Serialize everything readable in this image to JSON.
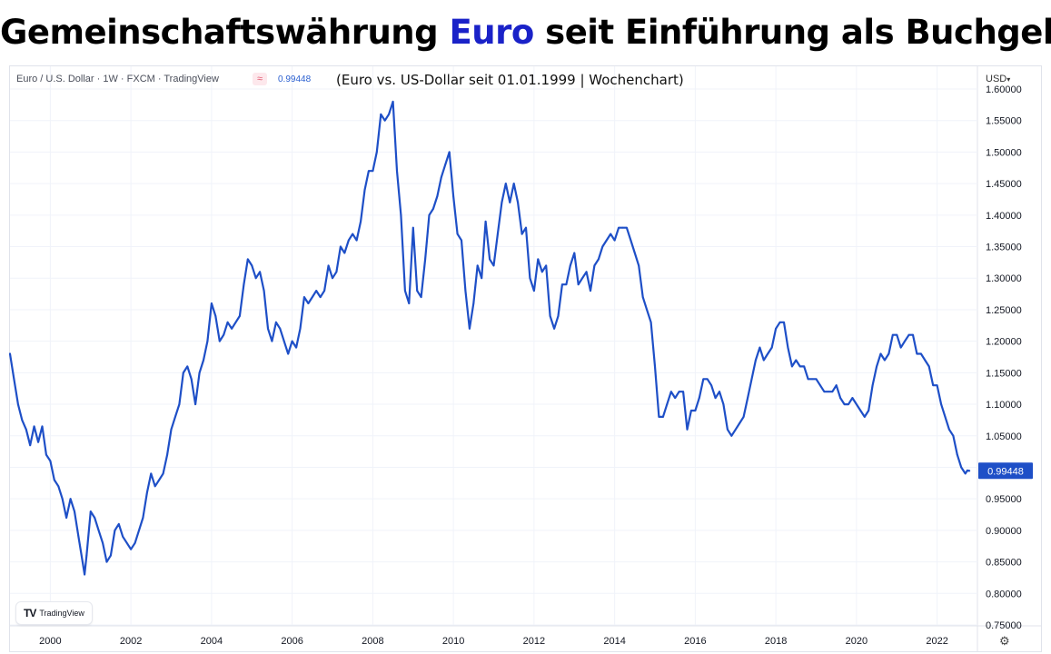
{
  "header": {
    "title_pre": "Gemeinschaftswährung ",
    "title_accent": "Euro",
    "title_post": " seit Einführung als Buchgeld"
  },
  "toolbar": {
    "symbol": "Euro / U.S. Dollar · 1W · FXCM · TradingView",
    "badge": "≈",
    "last_price": "0.99448",
    "subtitle": "(Euro vs. US-Dollar seit 01.01.1999 | Wochenchart)",
    "currency": "USD",
    "logo_mark": "TV",
    "logo_name": "TradingView",
    "settings_icon": "⚙"
  },
  "colors": {
    "line": "#1e4fc7",
    "accent": "#1a22c8",
    "price_tag": "#1e4fc7",
    "grid": "#f0f3fa"
  },
  "chart_data": {
    "type": "line",
    "title": "Gemeinschaftswährung Euro seit Einführung als Buchgeld",
    "subtitle": "(Euro vs. US-Dollar seit 01.01.1999 | Wochenchart)",
    "xlabel": "",
    "ylabel": "",
    "xlim": [
      1999.0,
      2023.0
    ],
    "ylim": [
      0.75,
      1.6
    ],
    "x_ticks": [
      2000,
      2002,
      2004,
      2006,
      2008,
      2010,
      2012,
      2014,
      2016,
      2018,
      2020,
      2022
    ],
    "y_ticks": [
      "0.75000",
      "0.80000",
      "0.85000",
      "0.90000",
      "0.95000",
      "1.00000",
      "1.05000",
      "1.10000",
      "1.15000",
      "1.20000",
      "1.25000",
      "1.30000",
      "1.35000",
      "1.40000",
      "1.45000",
      "1.50000",
      "1.55000",
      "1.60000"
    ],
    "grid": true,
    "legend": "none",
    "last_value_label": "0.99448",
    "series": [
      {
        "values": [
          [
            1999.0,
            1.18
          ],
          [
            1999.1,
            1.14
          ],
          [
            1999.2,
            1.1
          ],
          [
            1999.3,
            1.075
          ],
          [
            1999.4,
            1.06
          ],
          [
            1999.5,
            1.035
          ],
          [
            1999.6,
            1.065
          ],
          [
            1999.7,
            1.04
          ],
          [
            1999.8,
            1.065
          ],
          [
            1999.9,
            1.02
          ],
          [
            2000.0,
            1.01
          ],
          [
            2000.1,
            0.98
          ],
          [
            2000.2,
            0.97
          ],
          [
            2000.3,
            0.95
          ],
          [
            2000.4,
            0.92
          ],
          [
            2000.5,
            0.95
          ],
          [
            2000.6,
            0.93
          ],
          [
            2000.7,
            0.89
          ],
          [
            2000.8,
            0.85
          ],
          [
            2000.85,
            0.83
          ],
          [
            2000.9,
            0.86
          ],
          [
            2001.0,
            0.93
          ],
          [
            2001.1,
            0.92
          ],
          [
            2001.2,
            0.9
          ],
          [
            2001.3,
            0.88
          ],
          [
            2001.4,
            0.85
          ],
          [
            2001.5,
            0.86
          ],
          [
            2001.6,
            0.9
          ],
          [
            2001.7,
            0.91
          ],
          [
            2001.8,
            0.89
          ],
          [
            2001.9,
            0.88
          ],
          [
            2002.0,
            0.87
          ],
          [
            2002.1,
            0.88
          ],
          [
            2002.2,
            0.9
          ],
          [
            2002.3,
            0.92
          ],
          [
            2002.4,
            0.96
          ],
          [
            2002.5,
            0.99
          ],
          [
            2002.6,
            0.97
          ],
          [
            2002.7,
            0.98
          ],
          [
            2002.8,
            0.99
          ],
          [
            2002.9,
            1.02
          ],
          [
            2003.0,
            1.06
          ],
          [
            2003.1,
            1.08
          ],
          [
            2003.2,
            1.1
          ],
          [
            2003.3,
            1.15
          ],
          [
            2003.4,
            1.16
          ],
          [
            2003.5,
            1.14
          ],
          [
            2003.6,
            1.1
          ],
          [
            2003.7,
            1.15
          ],
          [
            2003.8,
            1.17
          ],
          [
            2003.9,
            1.2
          ],
          [
            2004.0,
            1.26
          ],
          [
            2004.1,
            1.24
          ],
          [
            2004.2,
            1.2
          ],
          [
            2004.3,
            1.21
          ],
          [
            2004.4,
            1.23
          ],
          [
            2004.5,
            1.22
          ],
          [
            2004.6,
            1.23
          ],
          [
            2004.7,
            1.24
          ],
          [
            2004.8,
            1.29
          ],
          [
            2004.9,
            1.33
          ],
          [
            2005.0,
            1.32
          ],
          [
            2005.1,
            1.3
          ],
          [
            2005.2,
            1.31
          ],
          [
            2005.3,
            1.28
          ],
          [
            2005.4,
            1.22
          ],
          [
            2005.5,
            1.2
          ],
          [
            2005.6,
            1.23
          ],
          [
            2005.7,
            1.22
          ],
          [
            2005.8,
            1.2
          ],
          [
            2005.9,
            1.18
          ],
          [
            2006.0,
            1.2
          ],
          [
            2006.1,
            1.19
          ],
          [
            2006.2,
            1.22
          ],
          [
            2006.3,
            1.27
          ],
          [
            2006.4,
            1.26
          ],
          [
            2006.5,
            1.27
          ],
          [
            2006.6,
            1.28
          ],
          [
            2006.7,
            1.27
          ],
          [
            2006.8,
            1.28
          ],
          [
            2006.9,
            1.32
          ],
          [
            2007.0,
            1.3
          ],
          [
            2007.1,
            1.31
          ],
          [
            2007.2,
            1.35
          ],
          [
            2007.3,
            1.34
          ],
          [
            2007.4,
            1.36
          ],
          [
            2007.5,
            1.37
          ],
          [
            2007.6,
            1.36
          ],
          [
            2007.7,
            1.39
          ],
          [
            2007.8,
            1.44
          ],
          [
            2007.9,
            1.47
          ],
          [
            2008.0,
            1.47
          ],
          [
            2008.1,
            1.5
          ],
          [
            2008.2,
            1.56
          ],
          [
            2008.3,
            1.55
          ],
          [
            2008.4,
            1.56
          ],
          [
            2008.5,
            1.58
          ],
          [
            2008.6,
            1.47
          ],
          [
            2008.7,
            1.4
          ],
          [
            2008.8,
            1.28
          ],
          [
            2008.9,
            1.26
          ],
          [
            2009.0,
            1.38
          ],
          [
            2009.1,
            1.28
          ],
          [
            2009.2,
            1.27
          ],
          [
            2009.3,
            1.33
          ],
          [
            2009.4,
            1.4
          ],
          [
            2009.5,
            1.41
          ],
          [
            2009.6,
            1.43
          ],
          [
            2009.7,
            1.46
          ],
          [
            2009.8,
            1.48
          ],
          [
            2009.9,
            1.5
          ],
          [
            2010.0,
            1.43
          ],
          [
            2010.1,
            1.37
          ],
          [
            2010.2,
            1.36
          ],
          [
            2010.3,
            1.28
          ],
          [
            2010.4,
            1.22
          ],
          [
            2010.5,
            1.26
          ],
          [
            2010.6,
            1.32
          ],
          [
            2010.7,
            1.3
          ],
          [
            2010.8,
            1.39
          ],
          [
            2010.9,
            1.33
          ],
          [
            2011.0,
            1.32
          ],
          [
            2011.1,
            1.37
          ],
          [
            2011.2,
            1.42
          ],
          [
            2011.3,
            1.45
          ],
          [
            2011.4,
            1.42
          ],
          [
            2011.5,
            1.45
          ],
          [
            2011.6,
            1.42
          ],
          [
            2011.7,
            1.37
          ],
          [
            2011.8,
            1.38
          ],
          [
            2011.9,
            1.3
          ],
          [
            2012.0,
            1.28
          ],
          [
            2012.1,
            1.33
          ],
          [
            2012.2,
            1.31
          ],
          [
            2012.3,
            1.32
          ],
          [
            2012.4,
            1.24
          ],
          [
            2012.5,
            1.22
          ],
          [
            2012.6,
            1.24
          ],
          [
            2012.7,
            1.29
          ],
          [
            2012.8,
            1.29
          ],
          [
            2012.9,
            1.32
          ],
          [
            2013.0,
            1.34
          ],
          [
            2013.1,
            1.29
          ],
          [
            2013.2,
            1.3
          ],
          [
            2013.3,
            1.31
          ],
          [
            2013.4,
            1.28
          ],
          [
            2013.5,
            1.32
          ],
          [
            2013.6,
            1.33
          ],
          [
            2013.7,
            1.35
          ],
          [
            2013.8,
            1.36
          ],
          [
            2013.9,
            1.37
          ],
          [
            2014.0,
            1.36
          ],
          [
            2014.1,
            1.38
          ],
          [
            2014.2,
            1.38
          ],
          [
            2014.3,
            1.38
          ],
          [
            2014.4,
            1.36
          ],
          [
            2014.5,
            1.34
          ],
          [
            2014.6,
            1.32
          ],
          [
            2014.7,
            1.27
          ],
          [
            2014.8,
            1.25
          ],
          [
            2014.9,
            1.23
          ],
          [
            2015.0,
            1.16
          ],
          [
            2015.1,
            1.08
          ],
          [
            2015.2,
            1.08
          ],
          [
            2015.3,
            1.1
          ],
          [
            2015.4,
            1.12
          ],
          [
            2015.5,
            1.11
          ],
          [
            2015.6,
            1.12
          ],
          [
            2015.7,
            1.12
          ],
          [
            2015.8,
            1.06
          ],
          [
            2015.9,
            1.09
          ],
          [
            2016.0,
            1.09
          ],
          [
            2016.1,
            1.11
          ],
          [
            2016.2,
            1.14
          ],
          [
            2016.3,
            1.14
          ],
          [
            2016.4,
            1.13
          ],
          [
            2016.5,
            1.11
          ],
          [
            2016.6,
            1.12
          ],
          [
            2016.7,
            1.1
          ],
          [
            2016.8,
            1.06
          ],
          [
            2016.9,
            1.05
          ],
          [
            2017.0,
            1.06
          ],
          [
            2017.1,
            1.07
          ],
          [
            2017.2,
            1.08
          ],
          [
            2017.3,
            1.11
          ],
          [
            2017.4,
            1.14
          ],
          [
            2017.5,
            1.17
          ],
          [
            2017.6,
            1.19
          ],
          [
            2017.7,
            1.17
          ],
          [
            2017.8,
            1.18
          ],
          [
            2017.9,
            1.19
          ],
          [
            2018.0,
            1.22
          ],
          [
            2018.1,
            1.23
          ],
          [
            2018.2,
            1.23
          ],
          [
            2018.3,
            1.19
          ],
          [
            2018.4,
            1.16
          ],
          [
            2018.5,
            1.17
          ],
          [
            2018.6,
            1.16
          ],
          [
            2018.7,
            1.16
          ],
          [
            2018.8,
            1.14
          ],
          [
            2018.9,
            1.14
          ],
          [
            2019.0,
            1.14
          ],
          [
            2019.1,
            1.13
          ],
          [
            2019.2,
            1.12
          ],
          [
            2019.3,
            1.12
          ],
          [
            2019.4,
            1.12
          ],
          [
            2019.5,
            1.13
          ],
          [
            2019.6,
            1.11
          ],
          [
            2019.7,
            1.1
          ],
          [
            2019.8,
            1.1
          ],
          [
            2019.9,
            1.11
          ],
          [
            2020.0,
            1.1
          ],
          [
            2020.1,
            1.09
          ],
          [
            2020.2,
            1.08
          ],
          [
            2020.3,
            1.09
          ],
          [
            2020.4,
            1.13
          ],
          [
            2020.5,
            1.16
          ],
          [
            2020.6,
            1.18
          ],
          [
            2020.7,
            1.17
          ],
          [
            2020.8,
            1.18
          ],
          [
            2020.9,
            1.21
          ],
          [
            2021.0,
            1.21
          ],
          [
            2021.1,
            1.19
          ],
          [
            2021.2,
            1.2
          ],
          [
            2021.3,
            1.21
          ],
          [
            2021.4,
            1.21
          ],
          [
            2021.5,
            1.18
          ],
          [
            2021.6,
            1.18
          ],
          [
            2021.7,
            1.17
          ],
          [
            2021.8,
            1.16
          ],
          [
            2021.9,
            1.13
          ],
          [
            2022.0,
            1.13
          ],
          [
            2022.1,
            1.1
          ],
          [
            2022.2,
            1.08
          ],
          [
            2022.3,
            1.06
          ],
          [
            2022.4,
            1.05
          ],
          [
            2022.5,
            1.02
          ],
          [
            2022.6,
            1.0
          ],
          [
            2022.7,
            0.99
          ],
          [
            2022.75,
            0.995
          ],
          [
            2022.8,
            0.99448
          ]
        ]
      }
    ]
  }
}
